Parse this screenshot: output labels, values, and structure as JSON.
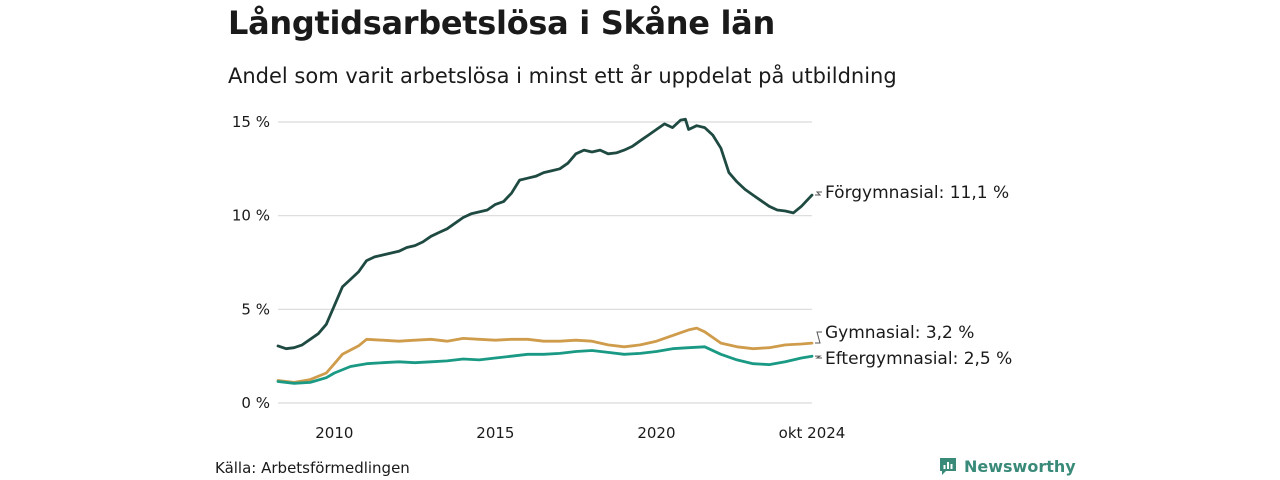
{
  "title": "Långtidsarbetslösa i Skåne län",
  "subtitle": "Andel som varit arbetslösa i minst ett år uppdelat på utbildning",
  "source": "Källa: Arbetsförmedlingen",
  "brand": "Newsworthy",
  "colors": {
    "forgymnasial": "#1f4a42",
    "gymnasial": "#cf9c4c",
    "eftergymnasial": "#1a9a84",
    "grid": "#d9d9d9",
    "brand": "#3a8a7a"
  },
  "chart_data": {
    "type": "line",
    "x_unit": "year",
    "xlim": [
      2008.25,
      2024.83
    ],
    "ylim": [
      0,
      15
    ],
    "y_ticks": [
      0,
      5,
      10,
      15
    ],
    "y_tick_labels": [
      "0 %",
      "5 %",
      "10 %",
      "15 %"
    ],
    "x_ticks": [
      2010,
      2015,
      2020,
      2024.83
    ],
    "x_tick_labels": [
      "2010",
      "2015",
      "2020",
      "okt 2024"
    ],
    "grid": "horizontal",
    "legend": "end-labels-right",
    "series": [
      {
        "name": "Förgymnasial",
        "key": "forgymnasial",
        "end_label": "Förgymnasial: 11,1 %",
        "points": [
          [
            2008.25,
            3.05
          ],
          [
            2008.5,
            2.9
          ],
          [
            2008.75,
            2.95
          ],
          [
            2009.0,
            3.1
          ],
          [
            2009.25,
            3.4
          ],
          [
            2009.5,
            3.7
          ],
          [
            2009.75,
            4.2
          ],
          [
            2010.0,
            5.2
          ],
          [
            2010.25,
            6.2
          ],
          [
            2010.5,
            6.6
          ],
          [
            2010.75,
            7.0
          ],
          [
            2011.0,
            7.6
          ],
          [
            2011.25,
            7.8
          ],
          [
            2011.5,
            7.9
          ],
          [
            2011.75,
            8.0
          ],
          [
            2012.0,
            8.1
          ],
          [
            2012.25,
            8.3
          ],
          [
            2012.5,
            8.4
          ],
          [
            2012.75,
            8.6
          ],
          [
            2013.0,
            8.9
          ],
          [
            2013.25,
            9.1
          ],
          [
            2013.5,
            9.3
          ],
          [
            2013.75,
            9.6
          ],
          [
            2014.0,
            9.9
          ],
          [
            2014.25,
            10.1
          ],
          [
            2014.5,
            10.2
          ],
          [
            2014.75,
            10.3
          ],
          [
            2015.0,
            10.6
          ],
          [
            2015.25,
            10.75
          ],
          [
            2015.5,
            11.2
          ],
          [
            2015.75,
            11.9
          ],
          [
            2016.0,
            12.0
          ],
          [
            2016.25,
            12.1
          ],
          [
            2016.5,
            12.3
          ],
          [
            2016.75,
            12.4
          ],
          [
            2017.0,
            12.5
          ],
          [
            2017.25,
            12.8
          ],
          [
            2017.5,
            13.3
          ],
          [
            2017.75,
            13.5
          ],
          [
            2018.0,
            13.4
          ],
          [
            2018.25,
            13.5
          ],
          [
            2018.5,
            13.3
          ],
          [
            2018.75,
            13.35
          ],
          [
            2019.0,
            13.5
          ],
          [
            2019.25,
            13.7
          ],
          [
            2019.5,
            14.0
          ],
          [
            2019.75,
            14.3
          ],
          [
            2020.0,
            14.6
          ],
          [
            2020.25,
            14.9
          ],
          [
            2020.5,
            14.7
          ],
          [
            2020.75,
            15.1
          ],
          [
            2020.9,
            15.15
          ],
          [
            2021.0,
            14.6
          ],
          [
            2021.25,
            14.8
          ],
          [
            2021.5,
            14.7
          ],
          [
            2021.75,
            14.3
          ],
          [
            2022.0,
            13.6
          ],
          [
            2022.25,
            12.3
          ],
          [
            2022.5,
            11.8
          ],
          [
            2022.75,
            11.4
          ],
          [
            2023.0,
            11.1
          ],
          [
            2023.25,
            10.8
          ],
          [
            2023.5,
            10.5
          ],
          [
            2023.75,
            10.3
          ],
          [
            2024.0,
            10.25
          ],
          [
            2024.25,
            10.15
          ],
          [
            2024.5,
            10.5
          ],
          [
            2024.83,
            11.1
          ]
        ]
      },
      {
        "name": "Gymnasial",
        "key": "gymnasial",
        "end_label": "Gymnasial:  3,2 %",
        "points": [
          [
            2008.25,
            1.2
          ],
          [
            2008.75,
            1.1
          ],
          [
            2009.25,
            1.25
          ],
          [
            2009.75,
            1.6
          ],
          [
            2010.0,
            2.1
          ],
          [
            2010.25,
            2.6
          ],
          [
            2010.75,
            3.05
          ],
          [
            2011.0,
            3.4
          ],
          [
            2011.5,
            3.35
          ],
          [
            2012.0,
            3.3
          ],
          [
            2012.5,
            3.35
          ],
          [
            2013.0,
            3.4
          ],
          [
            2013.5,
            3.3
          ],
          [
            2014.0,
            3.45
          ],
          [
            2014.5,
            3.4
          ],
          [
            2015.0,
            3.35
          ],
          [
            2015.5,
            3.4
          ],
          [
            2016.0,
            3.4
          ],
          [
            2016.5,
            3.3
          ],
          [
            2017.0,
            3.3
          ],
          [
            2017.5,
            3.35
          ],
          [
            2018.0,
            3.3
          ],
          [
            2018.5,
            3.1
          ],
          [
            2019.0,
            3.0
          ],
          [
            2019.5,
            3.1
          ],
          [
            2020.0,
            3.3
          ],
          [
            2020.5,
            3.6
          ],
          [
            2021.0,
            3.9
          ],
          [
            2021.25,
            4.0
          ],
          [
            2021.5,
            3.8
          ],
          [
            2022.0,
            3.2
          ],
          [
            2022.5,
            3.0
          ],
          [
            2023.0,
            2.9
          ],
          [
            2023.5,
            2.95
          ],
          [
            2024.0,
            3.1
          ],
          [
            2024.5,
            3.15
          ],
          [
            2024.83,
            3.2
          ]
        ]
      },
      {
        "name": "Eftergymnasial",
        "key": "eftergymnasial",
        "end_label": "Eftergymnasial:  2,5 %",
        "points": [
          [
            2008.25,
            1.15
          ],
          [
            2008.75,
            1.05
          ],
          [
            2009.25,
            1.1
          ],
          [
            2009.75,
            1.35
          ],
          [
            2010.0,
            1.6
          ],
          [
            2010.5,
            1.95
          ],
          [
            2011.0,
            2.1
          ],
          [
            2011.5,
            2.15
          ],
          [
            2012.0,
            2.2
          ],
          [
            2012.5,
            2.15
          ],
          [
            2013.0,
            2.2
          ],
          [
            2013.5,
            2.25
          ],
          [
            2014.0,
            2.35
          ],
          [
            2014.5,
            2.3
          ],
          [
            2015.0,
            2.4
          ],
          [
            2015.5,
            2.5
          ],
          [
            2016.0,
            2.6
          ],
          [
            2016.5,
            2.6
          ],
          [
            2017.0,
            2.65
          ],
          [
            2017.5,
            2.75
          ],
          [
            2018.0,
            2.8
          ],
          [
            2018.5,
            2.7
          ],
          [
            2019.0,
            2.6
          ],
          [
            2019.5,
            2.65
          ],
          [
            2020.0,
            2.75
          ],
          [
            2020.5,
            2.9
          ],
          [
            2021.0,
            2.95
          ],
          [
            2021.5,
            3.0
          ],
          [
            2022.0,
            2.6
          ],
          [
            2022.5,
            2.3
          ],
          [
            2023.0,
            2.1
          ],
          [
            2023.5,
            2.05
          ],
          [
            2024.0,
            2.2
          ],
          [
            2024.5,
            2.4
          ],
          [
            2024.83,
            2.5
          ]
        ]
      }
    ]
  }
}
